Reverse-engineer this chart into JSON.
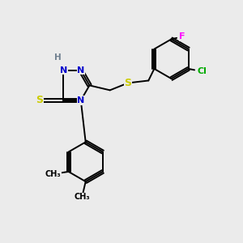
{
  "background_color": "#EBEBEB",
  "colors": {
    "N": "#0000CC",
    "S": "#CCCC00",
    "C": "#000000",
    "H": "#708090",
    "Cl": "#00AA00",
    "F": "#FF00FF",
    "bond": "#000000"
  },
  "bond_lw": 1.4,
  "ring_r": 0.072,
  "benz_r": 0.082,
  "dmp_r": 0.082
}
